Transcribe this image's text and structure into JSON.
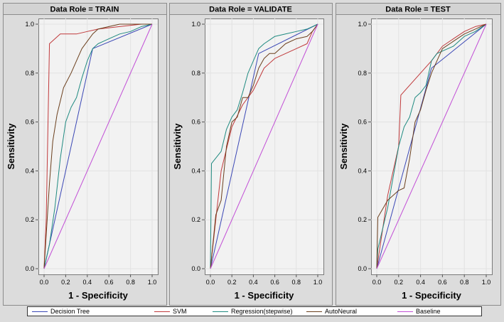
{
  "colors": {
    "decision_tree": "#3a47b5",
    "svm": "#c0393b",
    "regression": "#1f8a80",
    "autoneural": "#6b3f1d",
    "baseline": "#c24fd6",
    "plot_bg": "#ffffff",
    "figure_bg": "#dcdcdc"
  },
  "chart_data": [
    {
      "type": "line",
      "title": "Data Role = TRAIN",
      "xlabel": "1 - Specificity",
      "ylabel": "Sensitivity",
      "xlim": [
        0,
        1
      ],
      "ylim": [
        0,
        1
      ],
      "xticks": [
        "0.0",
        "0.2",
        "0.4",
        "0.6",
        "0.8",
        "1.0"
      ],
      "yticks": [
        "0.0",
        "0.2",
        "0.4",
        "0.6",
        "0.8",
        "1.0"
      ],
      "grid": true,
      "series": [
        {
          "name": "Decision Tree",
          "key": "decision_tree",
          "points": [
            [
              0,
              0
            ],
            [
              0.45,
              0.9
            ],
            [
              1,
              1
            ]
          ]
        },
        {
          "name": "SVM",
          "key": "svm",
          "points": [
            [
              0,
              0
            ],
            [
              0.02,
              0.2
            ],
            [
              0.05,
              0.92
            ],
            [
              0.15,
              0.96
            ],
            [
              0.3,
              0.96
            ],
            [
              0.4,
              0.97
            ],
            [
              0.5,
              0.98
            ],
            [
              0.7,
              0.99
            ],
            [
              0.9,
              1
            ],
            [
              1,
              1
            ]
          ]
        },
        {
          "name": "Regression(stepwise)",
          "key": "regression",
          "points": [
            [
              0,
              0
            ],
            [
              0.05,
              0.1
            ],
            [
              0.1,
              0.25
            ],
            [
              0.15,
              0.45
            ],
            [
              0.2,
              0.6
            ],
            [
              0.25,
              0.66
            ],
            [
              0.3,
              0.7
            ],
            [
              0.35,
              0.78
            ],
            [
              0.4,
              0.85
            ],
            [
              0.45,
              0.9
            ],
            [
              0.5,
              0.92
            ],
            [
              0.55,
              0.93
            ],
            [
              0.6,
              0.94
            ],
            [
              0.7,
              0.96
            ],
            [
              0.8,
              0.97
            ],
            [
              0.9,
              0.99
            ],
            [
              1,
              1
            ]
          ]
        },
        {
          "name": "AutoNeural",
          "key": "autoneural",
          "points": [
            [
              0,
              0
            ],
            [
              0.05,
              0.35
            ],
            [
              0.08,
              0.52
            ],
            [
              0.12,
              0.63
            ],
            [
              0.18,
              0.74
            ],
            [
              0.25,
              0.8
            ],
            [
              0.3,
              0.85
            ],
            [
              0.35,
              0.9
            ],
            [
              0.4,
              0.93
            ],
            [
              0.45,
              0.96
            ],
            [
              0.5,
              0.98
            ],
            [
              0.6,
              0.99
            ],
            [
              0.7,
              1
            ],
            [
              1,
              1
            ]
          ]
        },
        {
          "name": "Baseline",
          "key": "baseline",
          "points": [
            [
              0,
              0
            ],
            [
              1,
              1
            ]
          ]
        }
      ]
    },
    {
      "type": "line",
      "title": "Data Role = VALIDATE",
      "xlabel": "1 - Specificity",
      "ylabel": "Sensitivity",
      "xlim": [
        0,
        1
      ],
      "ylim": [
        0,
        1
      ],
      "xticks": [
        "0.0",
        "0.2",
        "0.4",
        "0.6",
        "0.8",
        "1.0"
      ],
      "yticks": [
        "0.0",
        "0.2",
        "0.4",
        "0.6",
        "0.8",
        "1.0"
      ],
      "grid": true,
      "series": [
        {
          "name": "Decision Tree",
          "key": "decision_tree",
          "points": [
            [
              0,
              0
            ],
            [
              0.45,
              0.88
            ],
            [
              1,
              1
            ]
          ]
        },
        {
          "name": "SVM",
          "key": "svm",
          "points": [
            [
              0,
              0
            ],
            [
              0.1,
              0.4
            ],
            [
              0.2,
              0.58
            ],
            [
              0.3,
              0.67
            ],
            [
              0.4,
              0.73
            ],
            [
              0.5,
              0.82
            ],
            [
              0.6,
              0.86
            ],
            [
              0.7,
              0.88
            ],
            [
              0.8,
              0.9
            ],
            [
              0.9,
              0.92
            ],
            [
              0.95,
              0.97
            ],
            [
              1,
              1
            ]
          ]
        },
        {
          "name": "Regression(stepwise)",
          "key": "regression",
          "points": [
            [
              0,
              0
            ],
            [
              0.01,
              0.43
            ],
            [
              0.1,
              0.48
            ],
            [
              0.15,
              0.57
            ],
            [
              0.2,
              0.62
            ],
            [
              0.25,
              0.65
            ],
            [
              0.3,
              0.72
            ],
            [
              0.35,
              0.8
            ],
            [
              0.4,
              0.85
            ],
            [
              0.45,
              0.9
            ],
            [
              0.5,
              0.92
            ],
            [
              0.6,
              0.95
            ],
            [
              0.7,
              0.96
            ],
            [
              0.8,
              0.97
            ],
            [
              0.9,
              0.98
            ],
            [
              1,
              1
            ]
          ]
        },
        {
          "name": "AutoNeural",
          "key": "autoneural",
          "points": [
            [
              0,
              0
            ],
            [
              0.05,
              0.22
            ],
            [
              0.1,
              0.28
            ],
            [
              0.15,
              0.5
            ],
            [
              0.2,
              0.6
            ],
            [
              0.25,
              0.62
            ],
            [
              0.3,
              0.7
            ],
            [
              0.35,
              0.7
            ],
            [
              0.4,
              0.75
            ],
            [
              0.45,
              0.82
            ],
            [
              0.5,
              0.86
            ],
            [
              0.55,
              0.88
            ],
            [
              0.6,
              0.88
            ],
            [
              0.7,
              0.92
            ],
            [
              0.8,
              0.94
            ],
            [
              0.9,
              0.95
            ],
            [
              0.95,
              0.97
            ],
            [
              1,
              1
            ]
          ]
        },
        {
          "name": "Baseline",
          "key": "baseline",
          "points": [
            [
              0,
              0
            ],
            [
              1,
              1
            ]
          ]
        }
      ]
    },
    {
      "type": "line",
      "title": "Data Role = TEST",
      "xlabel": "1 - Specificity",
      "ylabel": "Sensitivity",
      "xlim": [
        0,
        1
      ],
      "ylim": [
        0,
        1
      ],
      "xticks": [
        "0.0",
        "0.2",
        "0.4",
        "0.6",
        "0.8",
        "1.0"
      ],
      "yticks": [
        "0.0",
        "0.2",
        "0.4",
        "0.6",
        "0.8",
        "1.0"
      ],
      "grid": true,
      "series": [
        {
          "name": "Decision Tree",
          "key": "decision_tree",
          "points": [
            [
              0,
              0
            ],
            [
              0.5,
              0.82
            ],
            [
              1,
              1
            ]
          ]
        },
        {
          "name": "SVM",
          "key": "svm",
          "points": [
            [
              0,
              0
            ],
            [
              0.1,
              0.3
            ],
            [
              0.2,
              0.5
            ],
            [
              0.22,
              0.71
            ],
            [
              0.4,
              0.8
            ],
            [
              0.5,
              0.85
            ],
            [
              0.6,
              0.91
            ],
            [
              0.7,
              0.94
            ],
            [
              0.8,
              0.97
            ],
            [
              0.9,
              0.99
            ],
            [
              1,
              1
            ]
          ]
        },
        {
          "name": "Regression(stepwise)",
          "key": "regression",
          "points": [
            [
              0,
              0
            ],
            [
              0.01,
              0.08
            ],
            [
              0.1,
              0.25
            ],
            [
              0.2,
              0.5
            ],
            [
              0.25,
              0.58
            ],
            [
              0.3,
              0.62
            ],
            [
              0.35,
              0.7
            ],
            [
              0.4,
              0.72
            ],
            [
              0.45,
              0.75
            ],
            [
              0.5,
              0.85
            ],
            [
              0.55,
              0.88
            ],
            [
              0.6,
              0.89
            ],
            [
              0.7,
              0.91
            ],
            [
              0.8,
              0.95
            ],
            [
              0.9,
              0.97
            ],
            [
              1,
              1
            ]
          ]
        },
        {
          "name": "AutoNeural",
          "key": "autoneural",
          "points": [
            [
              0,
              0
            ],
            [
              0.01,
              0.21
            ],
            [
              0.1,
              0.28
            ],
            [
              0.2,
              0.32
            ],
            [
              0.25,
              0.33
            ],
            [
              0.3,
              0.45
            ],
            [
              0.35,
              0.6
            ],
            [
              0.4,
              0.65
            ],
            [
              0.45,
              0.73
            ],
            [
              0.5,
              0.8
            ],
            [
              0.55,
              0.85
            ],
            [
              0.6,
              0.9
            ],
            [
              0.7,
              0.93
            ],
            [
              0.8,
              0.96
            ],
            [
              0.9,
              0.98
            ],
            [
              1,
              1
            ]
          ]
        },
        {
          "name": "Baseline",
          "key": "baseline",
          "points": [
            [
              0,
              0
            ],
            [
              1,
              1
            ]
          ]
        }
      ]
    }
  ],
  "legend": [
    {
      "key": "decision_tree",
      "label": "Decision Tree"
    },
    {
      "key": "svm",
      "label": "SVM"
    },
    {
      "key": "regression",
      "label": "Regression(stepwise)"
    },
    {
      "key": "autoneural",
      "label": "AutoNeural"
    },
    {
      "key": "baseline",
      "label": "Baseline"
    }
  ]
}
